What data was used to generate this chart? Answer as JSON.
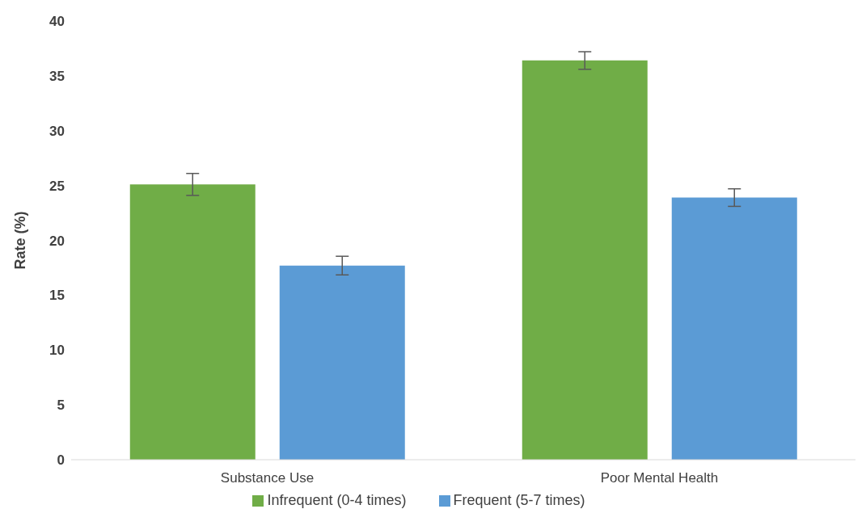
{
  "chart_data": {
    "type": "bar",
    "ylabel": "Rate (%)",
    "categories": [
      "Substance Use",
      "Poor Mental Health"
    ],
    "series": [
      {
        "name": "Infrequent (0-4 times)",
        "color": "#70ad47",
        "values": [
          25.1,
          36.4
        ],
        "errors": [
          1.0,
          0.8
        ]
      },
      {
        "name": "Frequent (5-7 times)",
        "color": "#5b9bd5",
        "values": [
          17.7,
          23.9
        ],
        "errors": [
          0.85,
          0.8
        ]
      }
    ],
    "ylim": [
      0,
      40
    ],
    "yticks": [
      0,
      5,
      10,
      15,
      20,
      25,
      30,
      35,
      40
    ],
    "grid": false,
    "legend": "bottom"
  }
}
